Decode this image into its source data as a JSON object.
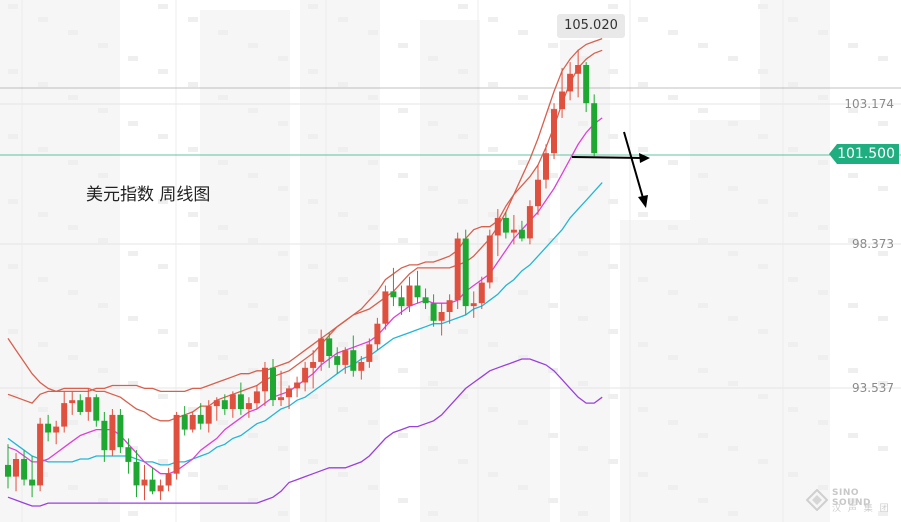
{
  "caption": "美元指数  周线图",
  "peak_label": "105.020",
  "price_tag": "101.500",
  "y_ticks": [
    "103.174",
    "98.373",
    "93.537"
  ],
  "watermark": {
    "line1": "SINO SOUND",
    "line2": "汉 声 集 团"
  },
  "colors": {
    "up": "#e0503f",
    "down": "#1ea832",
    "ma_red": "#d8604e",
    "ma_magenta": "#df3fd9",
    "ma_cyan": "#22b6d8",
    "band_purple": "#9a3fe0",
    "price_line": "#1fae7f",
    "arrow": "#000000"
  },
  "chart_data": {
    "type": "candlestick",
    "title": "美元指数  周线图",
    "y_axis_ticks": [
      103.174,
      98.373,
      93.537
    ],
    "current_price": 101.5,
    "high_label": 105.02,
    "ylim": [
      89.4,
      106.5
    ],
    "candles": [
      {
        "o": 90.9,
        "h": 91.6,
        "l": 90.1,
        "c": 90.5
      },
      {
        "o": 90.5,
        "h": 91.3,
        "l": 90.0,
        "c": 91.1
      },
      {
        "o": 91.1,
        "h": 91.4,
        "l": 90.2,
        "c": 90.4
      },
      {
        "o": 90.4,
        "h": 91.2,
        "l": 89.8,
        "c": 90.2
      },
      {
        "o": 90.2,
        "h": 92.5,
        "l": 90.0,
        "c": 92.3
      },
      {
        "o": 92.3,
        "h": 92.6,
        "l": 91.7,
        "c": 92.0
      },
      {
        "o": 92.0,
        "h": 92.4,
        "l": 91.6,
        "c": 92.2
      },
      {
        "o": 92.2,
        "h": 93.4,
        "l": 92.0,
        "c": 93.0
      },
      {
        "o": 93.0,
        "h": 93.4,
        "l": 92.6,
        "c": 93.1
      },
      {
        "o": 93.1,
        "h": 93.3,
        "l": 92.6,
        "c": 92.7
      },
      {
        "o": 92.7,
        "h": 93.5,
        "l": 92.4,
        "c": 93.2
      },
      {
        "o": 93.2,
        "h": 93.3,
        "l": 92.2,
        "c": 92.4
      },
      {
        "o": 92.4,
        "h": 92.7,
        "l": 91.0,
        "c": 91.4
      },
      {
        "o": 91.4,
        "h": 92.8,
        "l": 91.2,
        "c": 92.6
      },
      {
        "o": 92.6,
        "h": 92.8,
        "l": 91.3,
        "c": 91.5
      },
      {
        "o": 91.5,
        "h": 91.8,
        "l": 90.6,
        "c": 91.0
      },
      {
        "o": 91.0,
        "h": 91.4,
        "l": 89.8,
        "c": 90.2
      },
      {
        "o": 90.2,
        "h": 90.9,
        "l": 89.7,
        "c": 90.4
      },
      {
        "o": 90.4,
        "h": 90.8,
        "l": 89.9,
        "c": 90.0
      },
      {
        "o": 90.0,
        "h": 90.4,
        "l": 89.7,
        "c": 90.2
      },
      {
        "o": 90.2,
        "h": 90.8,
        "l": 90.0,
        "c": 90.6
      },
      {
        "o": 90.6,
        "h": 92.7,
        "l": 90.4,
        "c": 92.6
      },
      {
        "o": 92.6,
        "h": 92.9,
        "l": 91.9,
        "c": 92.1
      },
      {
        "o": 92.1,
        "h": 92.7,
        "l": 92.0,
        "c": 92.6
      },
      {
        "o": 92.6,
        "h": 93.0,
        "l": 92.1,
        "c": 92.3
      },
      {
        "o": 92.3,
        "h": 93.1,
        "l": 92.0,
        "c": 92.9
      },
      {
        "o": 92.9,
        "h": 93.2,
        "l": 92.4,
        "c": 93.1
      },
      {
        "o": 93.1,
        "h": 93.3,
        "l": 92.6,
        "c": 92.8
      },
      {
        "o": 92.8,
        "h": 93.4,
        "l": 92.5,
        "c": 93.3
      },
      {
        "o": 93.3,
        "h": 93.7,
        "l": 92.6,
        "c": 92.8
      },
      {
        "o": 92.8,
        "h": 93.2,
        "l": 92.5,
        "c": 93.0
      },
      {
        "o": 93.0,
        "h": 93.6,
        "l": 92.8,
        "c": 93.4
      },
      {
        "o": 93.4,
        "h": 94.4,
        "l": 92.9,
        "c": 94.2
      },
      {
        "o": 94.2,
        "h": 94.5,
        "l": 92.9,
        "c": 93.1
      },
      {
        "o": 93.1,
        "h": 94.1,
        "l": 92.9,
        "c": 93.2
      },
      {
        "o": 93.2,
        "h": 93.6,
        "l": 92.8,
        "c": 93.5
      },
      {
        "o": 93.5,
        "h": 93.9,
        "l": 93.2,
        "c": 93.7
      },
      {
        "o": 93.7,
        "h": 94.4,
        "l": 93.4,
        "c": 94.2
      },
      {
        "o": 94.2,
        "h": 94.8,
        "l": 93.5,
        "c": 94.4
      },
      {
        "o": 94.4,
        "h": 95.5,
        "l": 94.1,
        "c": 95.2
      },
      {
        "o": 95.2,
        "h": 95.4,
        "l": 94.2,
        "c": 94.6
      },
      {
        "o": 94.6,
        "h": 94.9,
        "l": 94.0,
        "c": 94.3
      },
      {
        "o": 94.3,
        "h": 94.9,
        "l": 94.0,
        "c": 94.8
      },
      {
        "o": 94.8,
        "h": 95.3,
        "l": 93.9,
        "c": 94.1
      },
      {
        "o": 94.1,
        "h": 94.6,
        "l": 93.8,
        "c": 94.4
      },
      {
        "o": 94.4,
        "h": 95.2,
        "l": 94.2,
        "c": 95.0
      },
      {
        "o": 95.0,
        "h": 95.9,
        "l": 94.8,
        "c": 95.7
      },
      {
        "o": 95.7,
        "h": 97.0,
        "l": 95.5,
        "c": 96.8
      },
      {
        "o": 96.8,
        "h": 97.6,
        "l": 96.3,
        "c": 96.6
      },
      {
        "o": 96.6,
        "h": 97.0,
        "l": 96.0,
        "c": 96.3
      },
      {
        "o": 96.3,
        "h": 97.3,
        "l": 96.1,
        "c": 97.0
      },
      {
        "o": 97.0,
        "h": 97.5,
        "l": 96.4,
        "c": 96.6
      },
      {
        "o": 96.6,
        "h": 96.9,
        "l": 96.2,
        "c": 96.4
      },
      {
        "o": 96.4,
        "h": 96.7,
        "l": 95.6,
        "c": 95.8
      },
      {
        "o": 95.8,
        "h": 96.4,
        "l": 95.3,
        "c": 96.1
      },
      {
        "o": 96.1,
        "h": 96.7,
        "l": 95.7,
        "c": 96.5
      },
      {
        "o": 96.5,
        "h": 98.8,
        "l": 96.2,
        "c": 98.6
      },
      {
        "o": 98.6,
        "h": 98.9,
        "l": 96.0,
        "c": 96.3
      },
      {
        "o": 96.3,
        "h": 96.8,
        "l": 95.9,
        "c": 96.4
      },
      {
        "o": 96.4,
        "h": 97.3,
        "l": 96.2,
        "c": 97.1
      },
      {
        "o": 97.1,
        "h": 98.9,
        "l": 96.9,
        "c": 98.7
      },
      {
        "o": 98.7,
        "h": 99.6,
        "l": 98.0,
        "c": 99.3
      },
      {
        "o": 99.3,
        "h": 99.5,
        "l": 98.6,
        "c": 98.8
      },
      {
        "o": 98.8,
        "h": 99.4,
        "l": 98.4,
        "c": 98.9
      },
      {
        "o": 98.9,
        "h": 99.2,
        "l": 98.5,
        "c": 98.6
      },
      {
        "o": 98.6,
        "h": 99.9,
        "l": 98.4,
        "c": 99.7
      },
      {
        "o": 99.7,
        "h": 101.1,
        "l": 99.4,
        "c": 100.6
      },
      {
        "o": 100.6,
        "h": 101.8,
        "l": 100.3,
        "c": 101.5
      },
      {
        "o": 101.5,
        "h": 103.2,
        "l": 101.3,
        "c": 103.0
      },
      {
        "o": 103.0,
        "h": 104.4,
        "l": 102.7,
        "c": 103.6
      },
      {
        "o": 103.6,
        "h": 104.6,
        "l": 103.3,
        "c": 104.2
      },
      {
        "o": 104.2,
        "h": 105.02,
        "l": 103.4,
        "c": 104.5
      },
      {
        "o": 104.5,
        "h": 104.6,
        "l": 102.9,
        "c": 103.2
      },
      {
        "o": 103.2,
        "h": 103.5,
        "l": 101.4,
        "c": 101.5
      }
    ],
    "ma_red": [
      93.3,
      93.2,
      93.1,
      93.0,
      93.3,
      93.4,
      93.4,
      93.5,
      93.5,
      93.5,
      93.5,
      93.4,
      93.4,
      93.3,
      93.2,
      93.0,
      92.8,
      92.7,
      92.5,
      92.4,
      92.4,
      92.5,
      92.6,
      92.7,
      92.9,
      92.9,
      93.1,
      93.2,
      93.3,
      93.4,
      93.5,
      93.6,
      93.8,
      93.9,
      94.0,
      94.1,
      94.3,
      94.5,
      94.7,
      95.0,
      95.3,
      95.6,
      95.8,
      96.0,
      96.2,
      96.5,
      96.8,
      97.2,
      97.4,
      97.6,
      97.7,
      97.7,
      97.8,
      97.8,
      97.9,
      98.0,
      98.2,
      98.6,
      98.9,
      99.0,
      99.0,
      99.2,
      99.7,
      100.1,
      100.4,
      100.7,
      101.1,
      101.7,
      102.4,
      103.2,
      103.9,
      104.4,
      104.7,
      104.9,
      105.0
    ],
    "ma_magenta": [
      91.5,
      91.4,
      91.2,
      91.0,
      91.0,
      91.1,
      91.3,
      91.5,
      91.7,
      91.9,
      92.0,
      92.1,
      92.1,
      92.1,
      91.9,
      91.6,
      91.3,
      91.0,
      90.8,
      90.6,
      90.6,
      90.7,
      90.9,
      91.1,
      91.4,
      91.6,
      91.8,
      92.1,
      92.3,
      92.5,
      92.7,
      92.8,
      93.0,
      93.2,
      93.3,
      93.4,
      93.6,
      93.8,
      94.0,
      94.3,
      94.5,
      94.7,
      94.8,
      94.9,
      95.0,
      95.1,
      95.3,
      95.6,
      95.9,
      96.1,
      96.3,
      96.4,
      96.5,
      96.4,
      96.4,
      96.4,
      96.5,
      96.8,
      97.0,
      97.2,
      97.4,
      97.8,
      98.2,
      98.6,
      98.9,
      99.2,
      99.5,
      99.9,
      100.3,
      100.8,
      101.3,
      101.8,
      102.2,
      102.5,
      102.7
    ],
    "ma_cyan": [
      91.8,
      91.6,
      91.4,
      91.2,
      91.1,
      91.0,
      91.0,
      91.0,
      91.0,
      91.1,
      91.1,
      91.2,
      91.2,
      91.2,
      91.2,
      91.2,
      91.1,
      91.0,
      91.0,
      90.9,
      90.9,
      91.0,
      91.0,
      91.1,
      91.2,
      91.3,
      91.5,
      91.6,
      91.8,
      91.9,
      92.1,
      92.3,
      92.4,
      92.6,
      92.8,
      92.9,
      93.1,
      93.2,
      93.4,
      93.6,
      93.8,
      94.0,
      94.2,
      94.3,
      94.5,
      94.6,
      94.8,
      95.0,
      95.2,
      95.3,
      95.4,
      95.5,
      95.6,
      95.7,
      95.7,
      95.8,
      95.9,
      96.0,
      96.2,
      96.3,
      96.5,
      96.7,
      97.0,
      97.2,
      97.5,
      97.7,
      98.0,
      98.3,
      98.6,
      98.9,
      99.3,
      99.6,
      99.9,
      100.2,
      100.5
    ],
    "band_upper": [
      95.2,
      94.8,
      94.4,
      94.0,
      93.7,
      93.5,
      93.4,
      93.4,
      93.4,
      93.4,
      93.4,
      93.5,
      93.5,
      93.6,
      93.6,
      93.6,
      93.6,
      93.5,
      93.5,
      93.4,
      93.4,
      93.4,
      93.4,
      93.5,
      93.5,
      93.6,
      93.7,
      93.8,
      93.9,
      94.0,
      94.0,
      94.1,
      94.1,
      94.2,
      94.3,
      94.4,
      94.6,
      94.8,
      95.0,
      95.2,
      95.4,
      95.6,
      95.8,
      96.0,
      96.1,
      96.2,
      96.4,
      96.6,
      96.8,
      97.1,
      97.4,
      97.6,
      97.6,
      97.6,
      97.6,
      97.6,
      97.7,
      97.8,
      98.0,
      98.3,
      98.6,
      99.0,
      99.5,
      100.1,
      100.7,
      101.3,
      102.0,
      102.8,
      103.6,
      104.3,
      104.7,
      105.0,
      105.2,
      105.3,
      105.4
    ],
    "band_lower": [
      89.8,
      89.7,
      89.6,
      89.5,
      89.5,
      89.6,
      89.6,
      89.6,
      89.6,
      89.6,
      89.6,
      89.6,
      89.6,
      89.6,
      89.6,
      89.6,
      89.6,
      89.6,
      89.6,
      89.6,
      89.6,
      89.6,
      89.6,
      89.6,
      89.6,
      89.6,
      89.6,
      89.6,
      89.6,
      89.6,
      89.6,
      89.6,
      89.7,
      89.8,
      90.0,
      90.3,
      90.4,
      90.5,
      90.6,
      90.7,
      90.8,
      90.8,
      90.8,
      90.9,
      91.0,
      91.2,
      91.5,
      91.8,
      92.0,
      92.1,
      92.2,
      92.2,
      92.3,
      92.4,
      92.6,
      92.9,
      93.2,
      93.5,
      93.7,
      93.9,
      94.1,
      94.2,
      94.3,
      94.4,
      94.5,
      94.5,
      94.4,
      94.3,
      94.1,
      93.8,
      93.5,
      93.2,
      93.0,
      93.0,
      93.2
    ]
  }
}
